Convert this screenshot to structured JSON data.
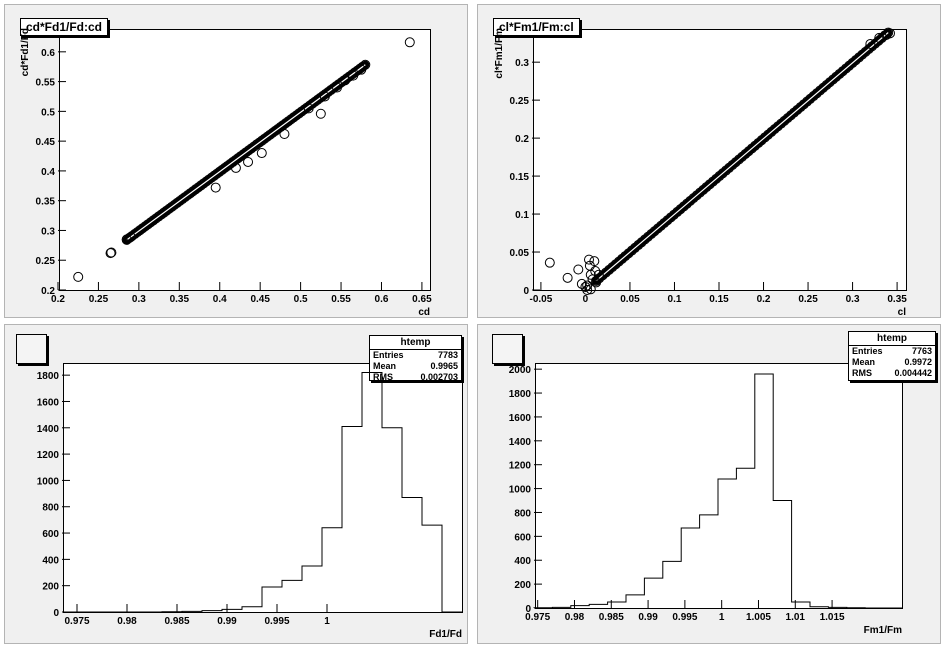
{
  "chart_data": [
    {
      "type": "scatter",
      "title": "cd*Fd1/Fd:cd",
      "xlabel": "cd",
      "ylabel": "cd*Fd1/Fd",
      "xlim": [
        0.2,
        0.66
      ],
      "ylim": [
        0.2,
        0.64
      ],
      "xticks": [
        "0.2",
        "0.25",
        "0.3",
        "0.35",
        "0.4",
        "0.45",
        "0.5",
        "0.55",
        "0.6",
        "0.65"
      ],
      "yticks": [
        "0.2",
        "0.25",
        "0.3",
        "0.35",
        "0.4",
        "0.45",
        "0.5",
        "0.55",
        "0.6"
      ],
      "trend": {
        "x_start": 0.285,
        "x_end": 0.58,
        "slope": 0.997
      },
      "points": [
        [
          0.225,
          0.222
        ],
        [
          0.265,
          0.262
        ],
        [
          0.266,
          0.263
        ],
        [
          0.285,
          0.285
        ],
        [
          0.29,
          0.289
        ],
        [
          0.395,
          0.372
        ],
        [
          0.42,
          0.405
        ],
        [
          0.435,
          0.415
        ],
        [
          0.452,
          0.43
        ],
        [
          0.48,
          0.462
        ],
        [
          0.525,
          0.496
        ],
        [
          0.51,
          0.505
        ],
        [
          0.53,
          0.525
        ],
        [
          0.545,
          0.54
        ],
        [
          0.555,
          0.552
        ],
        [
          0.565,
          0.56
        ],
        [
          0.575,
          0.57
        ],
        [
          0.635,
          0.616
        ]
      ],
      "grid": false
    },
    {
      "type": "scatter",
      "title": "cl*Fm1/Fm:cl",
      "xlabel": "cl",
      "ylabel": "cl*Fm1/Fm",
      "xlim": [
        -0.06,
        0.36
      ],
      "ylim": [
        0,
        0.345
      ],
      "xticks": [
        "-0.05",
        "0",
        "0.05",
        "0.1",
        "0.15",
        "0.2",
        "0.25",
        "0.3",
        "0.35"
      ],
      "yticks": [
        "0",
        "0.05",
        "0.1",
        "0.15",
        "0.2",
        "0.25",
        "0.3"
      ],
      "trend": {
        "x_start": 0.012,
        "x_end": 0.34,
        "slope": 0.997
      },
      "points": [
        [
          -0.04,
          0.036
        ],
        [
          -0.02,
          0.016
        ],
        [
          -0.008,
          0.027
        ],
        [
          -0.004,
          0.008
        ],
        [
          0.0,
          0.004
        ],
        [
          0.002,
          0.006
        ],
        [
          0.004,
          0.04
        ],
        [
          0.005,
          0.032
        ],
        [
          0.006,
          0.02
        ],
        [
          0.008,
          0.014
        ],
        [
          0.01,
          0.038
        ],
        [
          0.011,
          0.025
        ],
        [
          0.012,
          0.01
        ],
        [
          0.015,
          0.02
        ],
        [
          0.002,
          0.0
        ],
        [
          0.006,
          0.001
        ],
        [
          0.32,
          0.324
        ],
        [
          0.33,
          0.332
        ],
        [
          0.338,
          0.336
        ],
        [
          0.342,
          0.338
        ]
      ],
      "grid": false
    },
    {
      "type": "bar",
      "title": "",
      "xlabel": "Fd1/Fd",
      "xlim": [
        0.9735,
        1.0135
      ],
      "ylim": [
        0,
        1900
      ],
      "xticks": [
        "0.975",
        "0.98",
        "0.985",
        "0.99",
        "0.995",
        "1"
      ],
      "yticks": [
        "0",
        "200",
        "400",
        "600",
        "800",
        "1000",
        "1200",
        "1400",
        "1600",
        "1800"
      ],
      "bin_width": 0.002,
      "x": [
        0.9735,
        0.9755,
        0.9775,
        0.9795,
        0.9815,
        0.9835,
        0.9855,
        0.9875,
        0.9895,
        0.9915,
        0.9935,
        0.9955,
        0.9975,
        0.9995,
        1.0015,
        1.0035,
        1.0055,
        1.0075,
        1.0095,
        1.0115
      ],
      "values": [
        0,
        0,
        0,
        0,
        0,
        2,
        5,
        10,
        20,
        40,
        190,
        240,
        350,
        640,
        1410,
        1820,
        1400,
        870,
        660,
        0
      ],
      "stats": {
        "name": "htemp",
        "entries_label": "Entries",
        "entries": "7783",
        "mean_label": "Mean",
        "mean": "0.9965",
        "rms_label": "RMS",
        "rms": "0.002703"
      }
    },
    {
      "type": "bar",
      "title": "",
      "xlabel": "Fm1/Fm",
      "xlim": [
        0.9745,
        1.0245
      ],
      "ylim": [
        0,
        2060
      ],
      "xticks": [
        "0.975",
        "0.98",
        "0.985",
        "0.99",
        "0.995",
        "1",
        "1.005",
        "1.01",
        "1.015"
      ],
      "yticks": [
        "0",
        "200",
        "400",
        "600",
        "800",
        "1000",
        "1200",
        "1400",
        "1600",
        "1800",
        "2000"
      ],
      "bin_width": 0.0025,
      "x": [
        0.9745,
        0.977,
        0.9795,
        0.982,
        0.9845,
        0.987,
        0.9895,
        0.992,
        0.9945,
        0.997,
        0.9995,
        1.002,
        1.0045,
        1.007,
        1.0095,
        1.012,
        1.0145,
        1.017,
        1.0195,
        1.022
      ],
      "values": [
        2,
        5,
        20,
        30,
        50,
        110,
        250,
        390,
        670,
        780,
        1080,
        1170,
        1960,
        900,
        50,
        10,
        5,
        2,
        0,
        0
      ],
      "stats": {
        "name": "htemp",
        "entries_label": "Entries",
        "entries": "7763",
        "mean_label": "Mean",
        "mean": "0.9972",
        "rms_label": "RMS",
        "rms": "0.004442"
      }
    }
  ]
}
